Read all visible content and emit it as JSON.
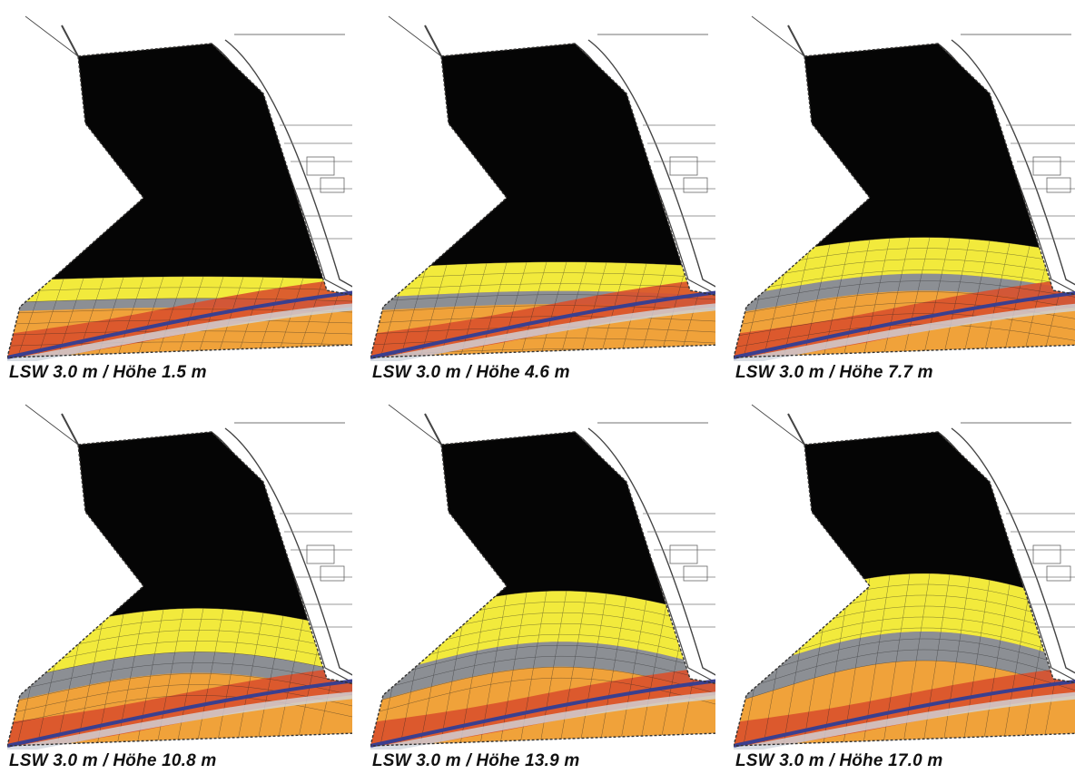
{
  "panels": [
    {
      "caption": "LSW 3.0 m / Höhe 1.5 m",
      "level": 1.5
    },
    {
      "caption": "LSW 3.0 m / Höhe 4.6 m",
      "level": 4.6
    },
    {
      "caption": "LSW 3.0 m / Höhe 7.7 m",
      "level": 7.7
    },
    {
      "caption": "LSW 3.0 m / Höhe 10.8 m",
      "level": 10.8
    },
    {
      "caption": "LSW 3.0 m / Höhe 13.9 m",
      "level": 13.9
    },
    {
      "caption": "LSW 3.0 m / Höhe 17.0 m",
      "level": 17.0
    }
  ],
  "colors": {
    "shadow": "#050505",
    "yellow": "#f2ea3c",
    "grey": "#8c8f94",
    "orange": "#f0a23a",
    "red": "#d9512c",
    "road_blue": "#3a3f8f",
    "street": "#cfd6dd",
    "lines": "#444444"
  }
}
